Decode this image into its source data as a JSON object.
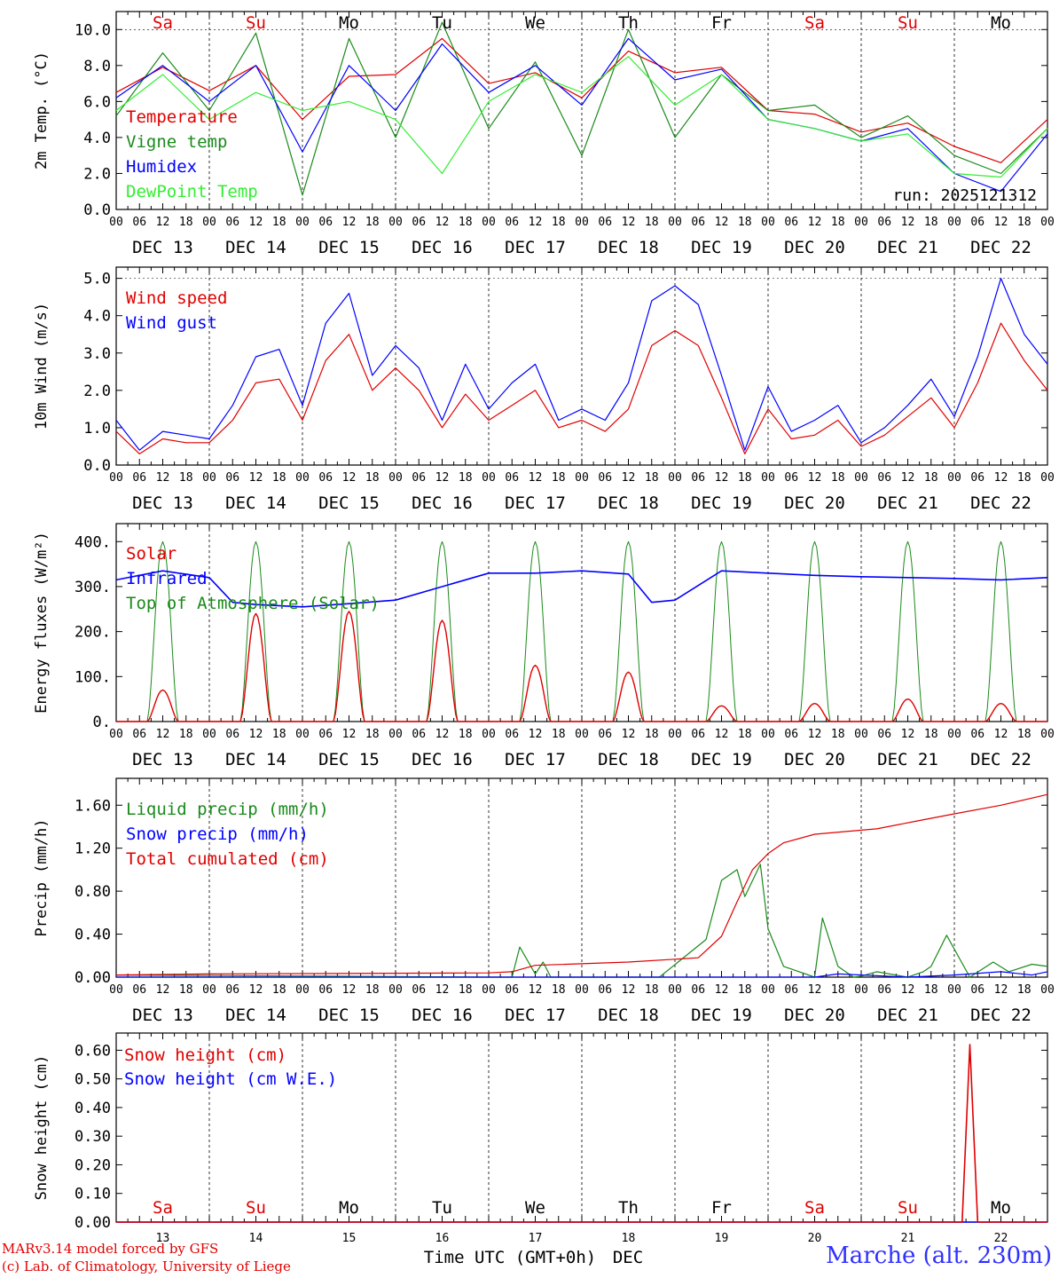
{
  "footer": {
    "credit_line1": "MARv3.14 model forced by GFS",
    "credit_line2": "(c) Lab. of Climatology, University of Liege",
    "station": "Marche (alt. 230m)"
  },
  "chart_data": [
    {
      "id": "temp",
      "type": "line",
      "ylabel": "2m Temp. (°C)",
      "ylim": [
        0,
        11
      ],
      "yticks": [
        "0.0",
        "2.0",
        "4.0",
        "6.0",
        "8.0",
        "10.0"
      ],
      "ytick_values": [
        0,
        2,
        4,
        6,
        8,
        10
      ],
      "run_label": "run: 2025121312",
      "weekdays": [
        "Sa",
        "Su",
        "Mo",
        "Tu",
        "We",
        "Th",
        "Fr",
        "Sa",
        "Su",
        "Mo"
      ],
      "weekday_colors": [
        "#e00000",
        "#e00000",
        "#000000",
        "#000000",
        "#000000",
        "#000000",
        "#000000",
        "#e00000",
        "#e00000",
        "#000000"
      ],
      "x_hours": [
        0,
        12,
        24,
        36,
        48,
        60,
        72,
        84,
        96,
        108,
        120,
        132,
        144,
        156,
        168,
        180,
        192,
        204,
        216,
        228,
        240
      ],
      "series": [
        {
          "name": "Temperature",
          "color": "#e00000",
          "values": [
            6.5,
            7.9,
            6.6,
            8.0,
            5.0,
            7.4,
            7.5,
            9.5,
            7.0,
            7.6,
            6.2,
            8.8,
            7.6,
            7.9,
            5.5,
            5.3,
            4.3,
            4.8,
            3.5,
            2.6,
            5.0
          ]
        },
        {
          "name": "Vigne temp",
          "color": "#1a8a1a",
          "values": [
            5.2,
            8.7,
            5.5,
            9.8,
            0.8,
            9.5,
            4.0,
            10.4,
            4.5,
            8.2,
            3.0,
            10.0,
            4.0,
            7.5,
            5.5,
            5.8,
            4.0,
            5.2,
            3.0,
            2.0,
            4.5
          ]
        },
        {
          "name": "Humidex",
          "color": "#0000ff",
          "values": [
            6.2,
            8.0,
            6.0,
            8.0,
            3.2,
            8.0,
            5.5,
            9.2,
            6.5,
            8.0,
            5.8,
            9.5,
            7.2,
            7.8,
            5.0,
            4.5,
            3.8,
            4.5,
            2.0,
            1.0,
            4.2
          ]
        },
        {
          "name": "DewPoint Temp",
          "color": "#33ee33",
          "values": [
            5.5,
            7.5,
            5.0,
            6.5,
            5.5,
            6.0,
            5.0,
            2.0,
            6.0,
            7.5,
            6.5,
            8.5,
            5.8,
            7.5,
            5.0,
            4.5,
            3.8,
            4.2,
            2.0,
            1.8,
            4.5
          ]
        }
      ]
    },
    {
      "id": "wind",
      "type": "line",
      "ylabel": "10m Wind (m/s)",
      "ylim": [
        0,
        5.3
      ],
      "yticks": [
        "0.0",
        "1.0",
        "2.0",
        "3.0",
        "4.0",
        "5.0"
      ],
      "ytick_values": [
        0,
        1,
        2,
        3,
        4,
        5
      ],
      "x_hours": [
        0,
        6,
        12,
        18,
        24,
        30,
        36,
        42,
        48,
        54,
        60,
        66,
        72,
        78,
        84,
        90,
        96,
        102,
        108,
        114,
        120,
        126,
        132,
        138,
        144,
        150,
        156,
        162,
        168,
        174,
        180,
        186,
        192,
        198,
        204,
        210,
        216,
        222,
        228,
        234,
        240
      ],
      "series": [
        {
          "name": "Wind speed",
          "color": "#e00000",
          "values": [
            0.9,
            0.3,
            0.7,
            0.6,
            0.6,
            1.2,
            2.2,
            2.3,
            1.2,
            2.8,
            3.5,
            2.0,
            2.6,
            2.0,
            1.0,
            1.9,
            1.2,
            1.6,
            2.0,
            1.0,
            1.2,
            0.9,
            1.5,
            3.2,
            3.6,
            3.2,
            1.8,
            0.3,
            1.5,
            0.7,
            0.8,
            1.2,
            0.5,
            0.8,
            1.3,
            1.8,
            1.0,
            2.2,
            3.8,
            2.8,
            2.0
          ]
        },
        {
          "name": "Wind gust",
          "color": "#0000ff",
          "values": [
            1.2,
            0.4,
            0.9,
            0.8,
            0.7,
            1.6,
            2.9,
            3.1,
            1.6,
            3.8,
            4.6,
            2.4,
            3.2,
            2.6,
            1.2,
            2.7,
            1.5,
            2.2,
            2.7,
            1.2,
            1.5,
            1.2,
            2.2,
            4.4,
            4.8,
            4.3,
            2.4,
            0.4,
            2.1,
            0.9,
            1.2,
            1.6,
            0.6,
            1.0,
            1.6,
            2.3,
            1.3,
            2.9,
            5.0,
            3.5,
            2.7
          ]
        }
      ]
    },
    {
      "id": "energy",
      "type": "line",
      "ylabel": "Energy fluxes (W/m²)",
      "ylim": [
        0,
        440
      ],
      "yticks": [
        "0.",
        "100.",
        "200.",
        "300.",
        "400."
      ],
      "ytick_values": [
        0,
        100,
        200,
        300,
        400
      ],
      "solar_peaks": [
        70,
        240,
        245,
        225,
        125,
        110,
        35,
        40,
        50,
        40
      ],
      "toa_peak": 400,
      "infrared": {
        "x_hours": [
          0,
          12,
          24,
          30,
          36,
          48,
          60,
          72,
          84,
          96,
          108,
          120,
          132,
          138,
          144,
          156,
          168,
          180,
          192,
          204,
          216,
          228,
          240
        ],
        "values": [
          315,
          335,
          320,
          265,
          260,
          255,
          262,
          270,
          300,
          330,
          330,
          335,
          328,
          265,
          270,
          335,
          330,
          325,
          322,
          320,
          318,
          315,
          320
        ]
      },
      "series_names": [
        "Solar",
        "Infrared",
        "Top of Atmosphere (Solar)"
      ],
      "series_colors": [
        "#e00000",
        "#0000ff",
        "#1a8a1a"
      ]
    },
    {
      "id": "precip",
      "type": "line",
      "ylabel": "Precip (mm/h)",
      "ylim": [
        0,
        1.85
      ],
      "yticks": [
        "0.00",
        "0.40",
        "0.80",
        "1.20",
        "1.60"
      ],
      "ytick_values": [
        0,
        0.4,
        0.8,
        1.2,
        1.6
      ],
      "series": [
        {
          "name": "Liquid precip (mm/h)",
          "color": "#1a8a1a",
          "x_hours": [
            0,
            96,
            102,
            104,
            108,
            110,
            112,
            140,
            152,
            156,
            160,
            162,
            166,
            168,
            172,
            180,
            182,
            186,
            190,
            192,
            196,
            204,
            208,
            210,
            214,
            220,
            226,
            230,
            236,
            240
          ],
          "values": [
            0.02,
            0.0,
            0.0,
            0.28,
            0.03,
            0.14,
            0.0,
            0.0,
            0.35,
            0.9,
            1.0,
            0.75,
            1.05,
            0.45,
            0.1,
            0.0,
            0.55,
            0.1,
            0.0,
            0.01,
            0.05,
            0.0,
            0.05,
            0.1,
            0.39,
            0.0,
            0.14,
            0.05,
            0.12,
            0.1
          ]
        },
        {
          "name": "Snow precip (mm/h)",
          "color": "#0000ff",
          "x_hours": [
            0,
            180,
            186,
            204,
            216,
            228,
            236,
            240
          ],
          "values": [
            0.0,
            0.0,
            0.03,
            0.0,
            0.02,
            0.05,
            0.02,
            0.05
          ]
        },
        {
          "name": "Total cumulated (cm)",
          "color": "#e00000",
          "x_hours": [
            0,
            24,
            96,
            102,
            108,
            132,
            150,
            156,
            160,
            164,
            168,
            172,
            180,
            196,
            206,
            216,
            228,
            240
          ],
          "values": [
            0.02,
            0.03,
            0.04,
            0.05,
            0.11,
            0.14,
            0.18,
            0.38,
            0.7,
            1.0,
            1.15,
            1.25,
            1.33,
            1.38,
            1.45,
            1.52,
            1.6,
            1.7
          ]
        }
      ]
    },
    {
      "id": "snow",
      "type": "line",
      "ylabel": "Snow height (cm)",
      "ylim": [
        0,
        0.66
      ],
      "yticks": [
        "0.00",
        "0.10",
        "0.20",
        "0.30",
        "0.40",
        "0.50",
        "0.60"
      ],
      "ytick_values": [
        0,
        0.1,
        0.2,
        0.3,
        0.4,
        0.5,
        0.6
      ],
      "series": [
        {
          "name": "Snow height (cm)",
          "color": "#e00000",
          "x_hours": [
            0,
            218,
            220,
            222,
            240
          ],
          "values": [
            0,
            0,
            0.62,
            0,
            0
          ]
        },
        {
          "name": "Snow height (cm W.E.)",
          "color": "#0000ff",
          "x_hours": [
            0,
            240
          ],
          "values": [
            0,
            0
          ]
        }
      ],
      "xlabel": "Time UTC (GMT+0h)",
      "xlabel_suffix": "DEC"
    }
  ],
  "x_axis": {
    "hour_labels": [
      "00",
      "06",
      "12",
      "18"
    ],
    "final_label": "00",
    "day_labels": [
      "DEC 13",
      "DEC 14",
      "DEC 15",
      "DEC 16",
      "DEC 17",
      "DEC 18",
      "DEC 19",
      "DEC 20",
      "DEC 21",
      "DEC 22"
    ],
    "day_numbers": [
      "13",
      "14",
      "15",
      "16",
      "17",
      "18",
      "19",
      "20",
      "21",
      "22"
    ]
  }
}
